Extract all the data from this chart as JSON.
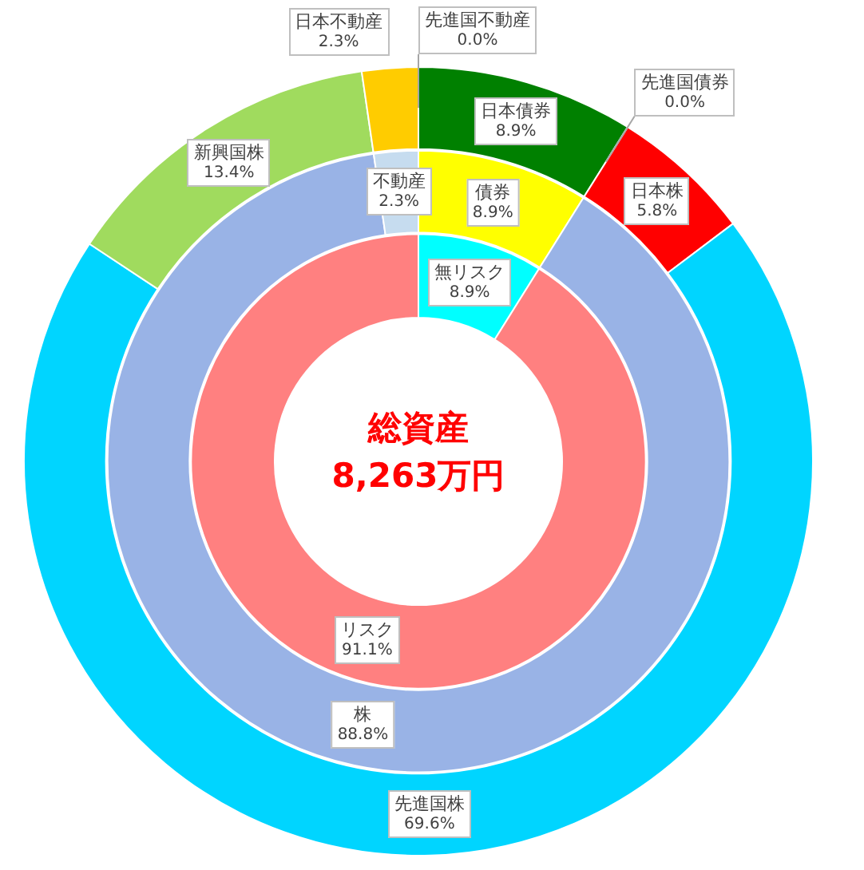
{
  "chart_data": [
    {
      "type": "donut",
      "title": "総資産",
      "subtitle": "8,263万円",
      "categories": [
        "無リスク",
        "リスク"
      ],
      "values": [
        8.9,
        91.1
      ],
      "colors": [
        "#00ffff",
        "#ff8080"
      ],
      "value_labels": [
        "8.9%",
        "91.1%"
      ]
    },
    {
      "type": "donut",
      "categories": [
        "債券",
        "株",
        "不動産"
      ],
      "values": [
        8.9,
        88.8,
        2.3
      ],
      "colors": [
        "#ffff00",
        "#99b3e6",
        "#c6dcef"
      ],
      "value_labels": [
        "8.9%",
        "88.8%",
        "2.3%"
      ]
    },
    {
      "type": "donut",
      "categories": [
        "日本債券",
        "先進国債券",
        "日本株",
        "先進国株",
        "新興国株",
        "日本不動産",
        "先進国不動産"
      ],
      "values": [
        8.9,
        0.0,
        5.8,
        69.6,
        13.4,
        2.3,
        0.0
      ],
      "colors": [
        "#008000",
        null,
        "#ff0000",
        "#00d5ff",
        "#a0db5e",
        "#ffcc00",
        null
      ],
      "value_labels": [
        "8.9%",
        "0.0%",
        "5.8%",
        "69.6%",
        "13.4%",
        "2.3%",
        "0.0%"
      ]
    }
  ]
}
